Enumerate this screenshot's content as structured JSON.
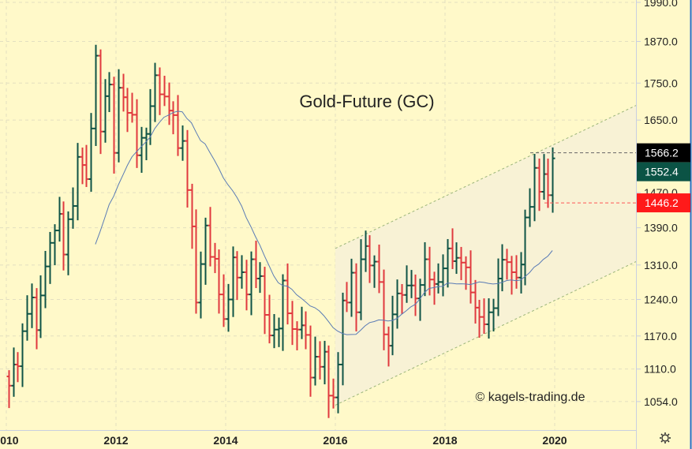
{
  "chart_data": {
    "type": "ohlc",
    "title": "Gold-Future (GC)",
    "watermark": "© kagels-trading.de",
    "scale": "log",
    "ylim": [
      1030,
      2000
    ],
    "start": "2010-01",
    "interval": "month",
    "x_ticks": [
      "2010",
      "2012",
      "2014",
      "2016",
      "2018",
      "2020"
    ],
    "y_ticks": [
      "1990.0",
      "1870.0",
      "1750.0",
      "1650.0",
      "1470.0",
      "1390.0",
      "1310.0",
      "1240.0",
      "1170.0",
      "1110.0",
      "1054.0"
    ],
    "wick_fraction": 0.025,
    "first_open": 1097,
    "close": [
      1081,
      1118,
      1115,
      1179,
      1212,
      1244,
      1181,
      1248,
      1307,
      1357,
      1384,
      1421,
      1332,
      1409,
      1439,
      1556,
      1536,
      1502,
      1628,
      1828,
      1620,
      1714,
      1746,
      1566,
      1737,
      1711,
      1669,
      1664,
      1560,
      1604,
      1614,
      1687,
      1772,
      1719,
      1713,
      1675,
      1663,
      1578,
      1596,
      1476,
      1393,
      1234,
      1312,
      1395,
      1327,
      1323,
      1250,
      1202,
      1240,
      1326,
      1284,
      1295,
      1250,
      1322,
      1282,
      1287,
      1210,
      1171,
      1182,
      1184,
      1278,
      1213,
      1183,
      1182,
      1190,
      1172,
      1095,
      1132,
      1114,
      1141,
      1064,
      1061,
      1118,
      1238,
      1234,
      1294,
      1215,
      1322,
      1350,
      1309,
      1317,
      1275,
      1173,
      1152,
      1211,
      1252,
      1249,
      1268,
      1268,
      1242,
      1269,
      1322,
      1280,
      1271,
      1275,
      1303,
      1345,
      1318,
      1325,
      1315,
      1305,
      1254,
      1224,
      1206,
      1192,
      1215,
      1223,
      1282,
      1321,
      1316,
      1295,
      1284,
      1311,
      1413,
      1437,
      1529,
      1472,
      1514,
      1464,
      1552.4
    ],
    "moving_average_period": 20,
    "channel": {
      "upper": [
        [
          2016.0,
          1345
        ],
        [
          2021.5,
          1690
        ]
      ],
      "lower": [
        [
          2016.0,
          1048
        ],
        [
          2021.5,
          1318
        ]
      ]
    },
    "price_tags": [
      {
        "label": "1566.2",
        "value": 1566.2,
        "color": "#000000",
        "line": "#666666"
      },
      {
        "label": "1552.4",
        "value": 1552.4,
        "color": "#0b5345",
        "line": null
      },
      {
        "label": "1446.2",
        "value": 1446.2,
        "color": "#ff1a1a",
        "line": "#ff5555"
      }
    ],
    "colors": {
      "up": "#0f5446",
      "down": "#e0393e",
      "ma": "#5a7bb5",
      "channel": "#9bb57a"
    }
  }
}
